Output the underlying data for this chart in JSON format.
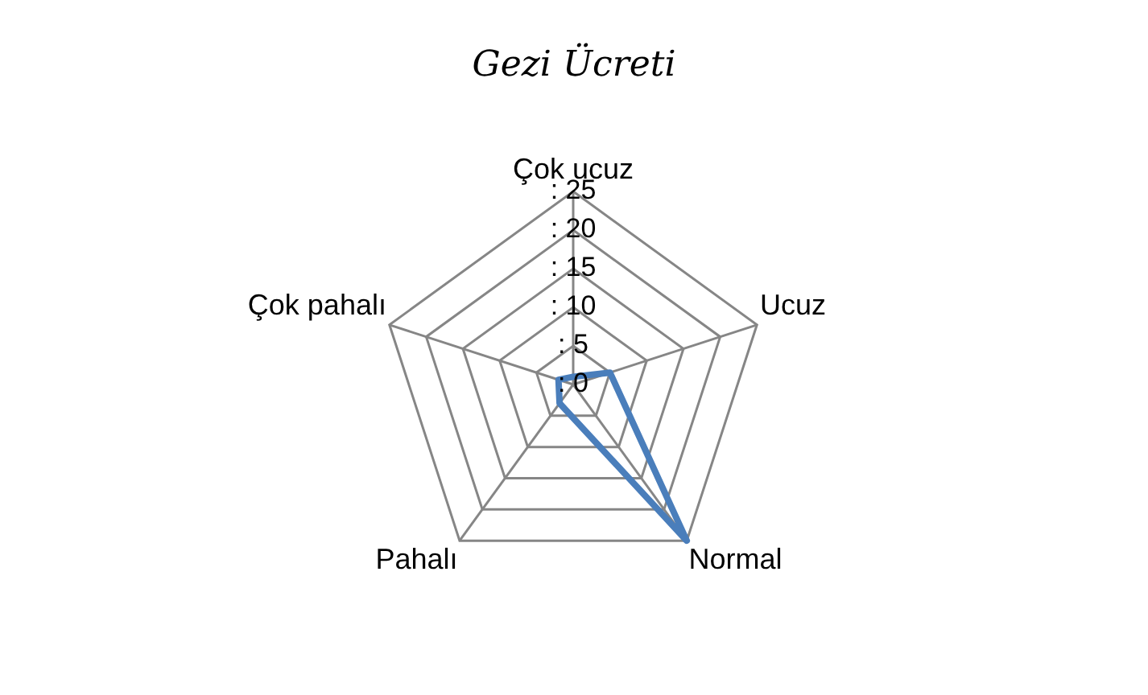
{
  "chart_data": {
    "type": "radar",
    "title": "Gezi Ücreti",
    "categories": [
      "Çok ucuz",
      "Ucuz",
      "Normal",
      "Pahalı",
      "Çok pahalı"
    ],
    "series": [
      {
        "color": "#4a7ebb",
        "values": [
          1,
          5,
          25,
          3,
          2
        ]
      }
    ],
    "ylim": [
      0,
      25
    ],
    "yticks": [
      {
        "value": 0,
        "label": ": 0"
      },
      {
        "value": 5,
        "label": ": 5"
      },
      {
        "value": 10,
        "label": ": 10"
      },
      {
        "value": 15,
        "label": ": 15"
      },
      {
        "value": 20,
        "label": ": 20"
      },
      {
        "value": 25,
        "label": ": 25"
      }
    ],
    "grid": true,
    "legend": false,
    "marker": "none"
  }
}
